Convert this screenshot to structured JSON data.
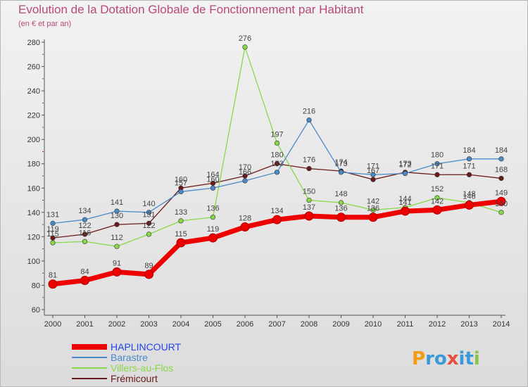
{
  "chart_data": {
    "type": "line",
    "title": "Evolution de la Dotation Globale de Fonctionnement par Habitant",
    "subtitle": "(en € et par an)",
    "xlabel": "",
    "ylabel": "",
    "ylim": [
      60,
      280
    ],
    "yticks": [
      60,
      80,
      100,
      120,
      140,
      160,
      180,
      200,
      220,
      240,
      260,
      280
    ],
    "categories": [
      "2000",
      "2001",
      "2002",
      "2003",
      "2004",
      "2005",
      "2006",
      "2007",
      "2008",
      "2009",
      "2010",
      "2011",
      "2012",
      "2013",
      "2014"
    ],
    "grid": false,
    "legend_position": "bottom-left",
    "series": [
      {
        "name": "Fremicourt",
        "label": "Frémicourt",
        "color": "#6b1a1a",
        "values": [
          119,
          122,
          130,
          131,
          160,
          164,
          170,
          180,
          176,
          174,
          167,
          173,
          171,
          171,
          168
        ]
      },
      {
        "name": "Villers-au-Flos",
        "label": "Villers-au-Flos",
        "color": "#88d848",
        "values": [
          115,
          116,
          112,
          122,
          133,
          136,
          276,
          197,
          150,
          148,
          142,
          144,
          152,
          148,
          140
        ]
      },
      {
        "name": "Barastre",
        "label": "Barastre",
        "color": "#4a8ac8",
        "values": [
          131,
          134,
          141,
          140,
          157,
          160,
          166,
          173,
          216,
          173,
          171,
          172,
          180,
          184,
          184
        ]
      },
      {
        "name": "HAPLINCOURT",
        "label": "HAPLINCOURT",
        "color": "#ee0000",
        "values": [
          81,
          84,
          91,
          89,
          115,
          119,
          128,
          134,
          137,
          136,
          136,
          141,
          142,
          146,
          149
        ]
      }
    ]
  },
  "logo": {
    "text": "Proxiti",
    "letters": [
      "P",
      "r",
      "o",
      "x",
      "i",
      "t",
      "i"
    ]
  }
}
